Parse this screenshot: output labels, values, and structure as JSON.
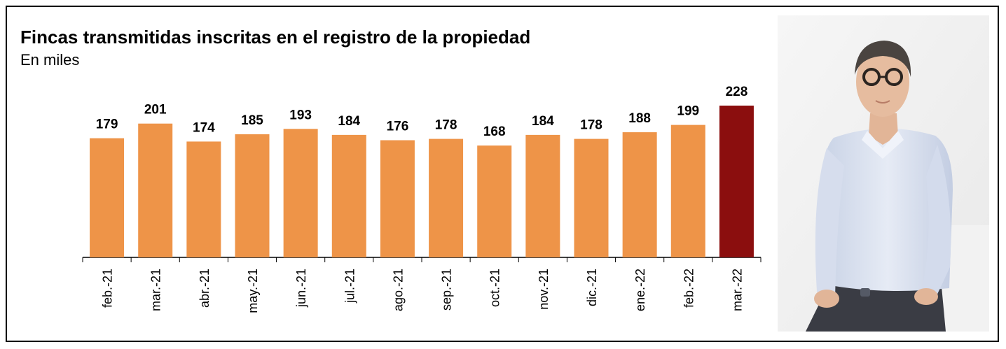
{
  "chart_data": {
    "type": "bar",
    "title": "Fincas transmitidas inscritas en el registro de la propiedad",
    "subtitle": "En miles",
    "categories": [
      "feb.-21",
      "mar.-21",
      "abr.-21",
      "may.-21",
      "jun.-21",
      "jul.-21",
      "ago.-21",
      "sep.-21",
      "oct.-21",
      "nov.-21",
      "dic.-21",
      "ene.-22",
      "feb.-22",
      "mar.-22"
    ],
    "values": [
      179,
      201,
      174,
      185,
      193,
      184,
      176,
      178,
      168,
      184,
      178,
      188,
      199,
      228
    ],
    "highlight_index": 13,
    "colors": {
      "bar": "#EE9448",
      "highlight": "#8B0E0E",
      "axis": "#000000"
    },
    "ylim": [
      0,
      240
    ],
    "grid": false,
    "legend": "none",
    "data_labels": true
  },
  "photo": {
    "description_icon": "person-photo"
  }
}
